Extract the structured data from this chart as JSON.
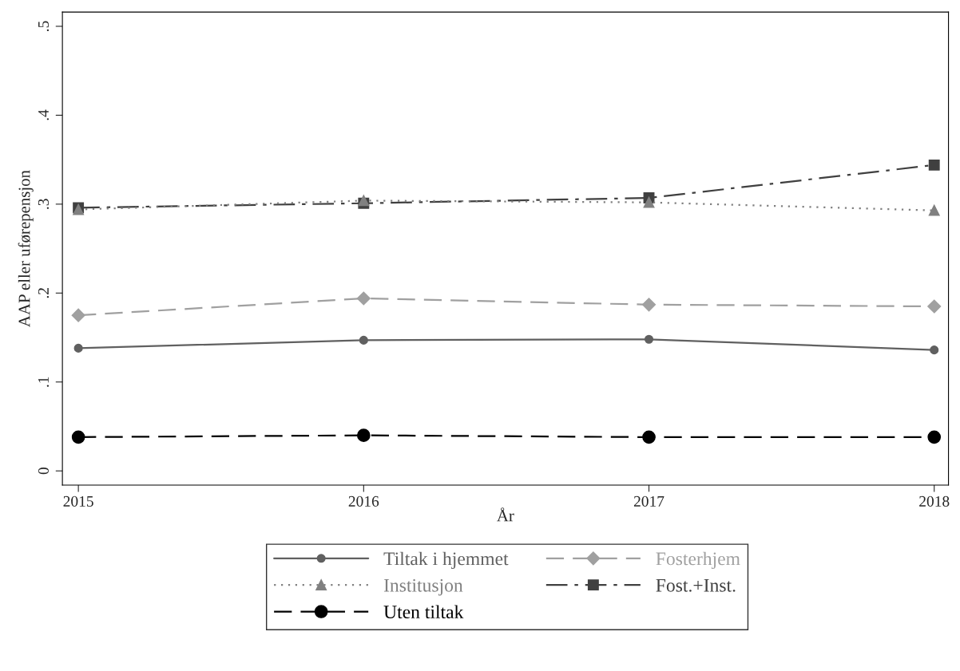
{
  "chart_data": {
    "type": "line",
    "xlabel": "År",
    "ylabel": "AAP eller uførepensjon",
    "x": [
      2015,
      2016,
      2017,
      2018
    ],
    "series": [
      {
        "name": "Tiltak i hjemmet",
        "color": "#606060",
        "marker": "circle",
        "line_style": "solid",
        "values": [
          0.138,
          0.147,
          0.148,
          0.136
        ]
      },
      {
        "name": "Fosterhjem",
        "color": "#a0a0a0",
        "marker": "diamond",
        "line_style": "dashed",
        "values": [
          0.175,
          0.194,
          0.187,
          0.185
        ]
      },
      {
        "name": "Institusjon",
        "color": "#808080",
        "marker": "triangle",
        "line_style": "dotted",
        "values": [
          0.294,
          0.304,
          0.302,
          0.293
        ]
      },
      {
        "name": "Fost.+Inst.",
        "color": "#404040",
        "marker": "square",
        "line_style": "dashdot",
        "values": [
          0.296,
          0.301,
          0.307,
          0.344
        ]
      },
      {
        "name": "Uten tiltak",
        "color": "#000000",
        "marker": "circle",
        "line_style": "dashed",
        "values": [
          0.038,
          0.04,
          0.038,
          0.038
        ]
      }
    ],
    "xlim": [
      2014.944,
      2018.05
    ],
    "ylim": [
      -0.016,
      0.516
    ],
    "xticks": [
      2015,
      2016,
      2017,
      2018
    ],
    "yticks": [
      {
        "value": 0,
        "label": "0"
      },
      {
        "value": 0.1,
        "label": ".1"
      },
      {
        "value": 0.2,
        "label": ".2"
      },
      {
        "value": 0.3,
        "label": ".3"
      },
      {
        "value": 0.4,
        "label": ".4"
      },
      {
        "value": 0.5,
        "label": ".5"
      }
    ],
    "grid": false,
    "legend": "bottom"
  }
}
